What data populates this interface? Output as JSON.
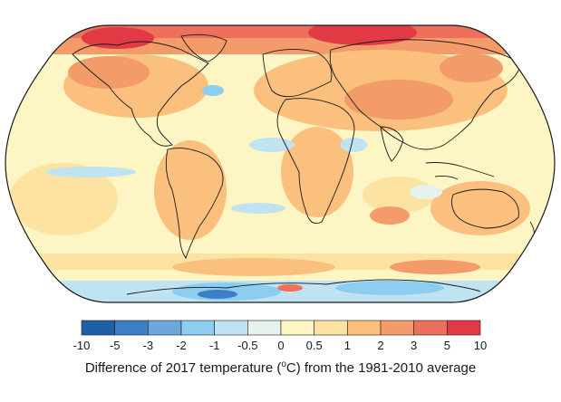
{
  "legend": {
    "ticks": [
      "-10",
      "-5",
      "-3",
      "-2",
      "-1",
      "-0.5",
      "0",
      "0.5",
      "1",
      "2",
      "3",
      "5",
      "10"
    ],
    "colors": [
      "#1f5fa8",
      "#3d7fc4",
      "#6da7dc",
      "#8dcdf0",
      "#bfe3f0",
      "#e6f2ec",
      "#fdf6c4",
      "#fde3a2",
      "#fbbf7e",
      "#f49b6a",
      "#ee6f5c",
      "#e13a45"
    ],
    "caption_before": "Difference of 2017 temperature (",
    "caption_sup": "o",
    "caption_after": "C) from the 1981-2010 average"
  },
  "map_colors": {
    "ocean_base": "#fdf6c4",
    "warm_light": "#fde3a2",
    "warm": "#fbbf7e",
    "warm_strong": "#f49b6a",
    "hot": "#ee6f5c",
    "very_hot": "#e13a45",
    "cool_light": "#e6f2ec",
    "cool": "#bfe3f0",
    "cold": "#8dcdf0",
    "very_cold": "#3d7fc4",
    "outline": "#1a1a1a"
  }
}
